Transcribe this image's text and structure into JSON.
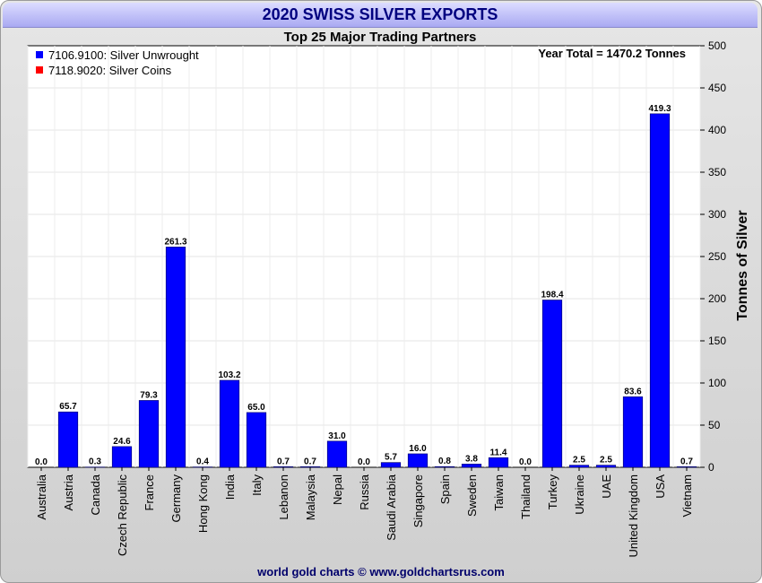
{
  "window": {
    "title": "2020 SWISS SILVER EXPORTS",
    "footer": "world gold charts © www.goldchartsrus.com"
  },
  "chart_data": {
    "type": "bar",
    "title": "Top 25 Major Trading Partners",
    "annotation": "Year Total = 1470.2 Tonnes",
    "ylabel": "Tonnes of Silver",
    "xlabel": "",
    "ylim": [
      0,
      500
    ],
    "yticks": [
      0,
      50,
      100,
      150,
      200,
      250,
      300,
      350,
      400,
      450,
      500
    ],
    "grid": true,
    "legend_position": "top-left",
    "categories": [
      "Australia",
      "Austria",
      "Canada",
      "Czech Republic",
      "France",
      "Germany",
      "Hong Kong",
      "India",
      "Italy",
      "Lebanon",
      "Malaysia",
      "Nepal",
      "Russia",
      "Saudi Arabia",
      "Singapore",
      "Spain",
      "Sweden",
      "Taiwan",
      "Thailand",
      "Turkey",
      "Ukraine",
      "UAE",
      "United Kingdom",
      "USA",
      "Vietnam"
    ],
    "series": [
      {
        "name": "7106.9100: Silver Unwrought",
        "color": "#0000ff",
        "values": [
          0.0,
          65.7,
          0.3,
          24.6,
          79.3,
          261.3,
          0.4,
          103.2,
          65.0,
          0.7,
          0.7,
          31.0,
          0.0,
          5.7,
          16.0,
          0.8,
          3.8,
          11.4,
          0.0,
          198.4,
          2.5,
          2.5,
          83.6,
          419.3,
          0.7
        ],
        "labels": [
          "0.0",
          "65.7",
          "0.3",
          "24.6",
          "79.3",
          "261.3",
          "0.4",
          "103.2",
          "65.0",
          "0.7",
          "0.7",
          "31.0",
          "0.0",
          "5.7",
          "16.0",
          "0.8",
          "3.8",
          "11.4",
          "0.0",
          "198.4",
          "2.5",
          "2.5",
          "83.6",
          "419.3",
          "0.7"
        ]
      },
      {
        "name": "7118.9020: Silver Coins",
        "color": "#ff0000",
        "values": [
          0,
          0,
          0,
          0,
          0,
          0,
          0,
          0,
          0,
          0,
          0,
          0,
          0,
          0,
          0,
          0,
          0,
          0,
          0,
          0,
          0,
          0,
          0,
          0,
          0
        ]
      }
    ]
  }
}
